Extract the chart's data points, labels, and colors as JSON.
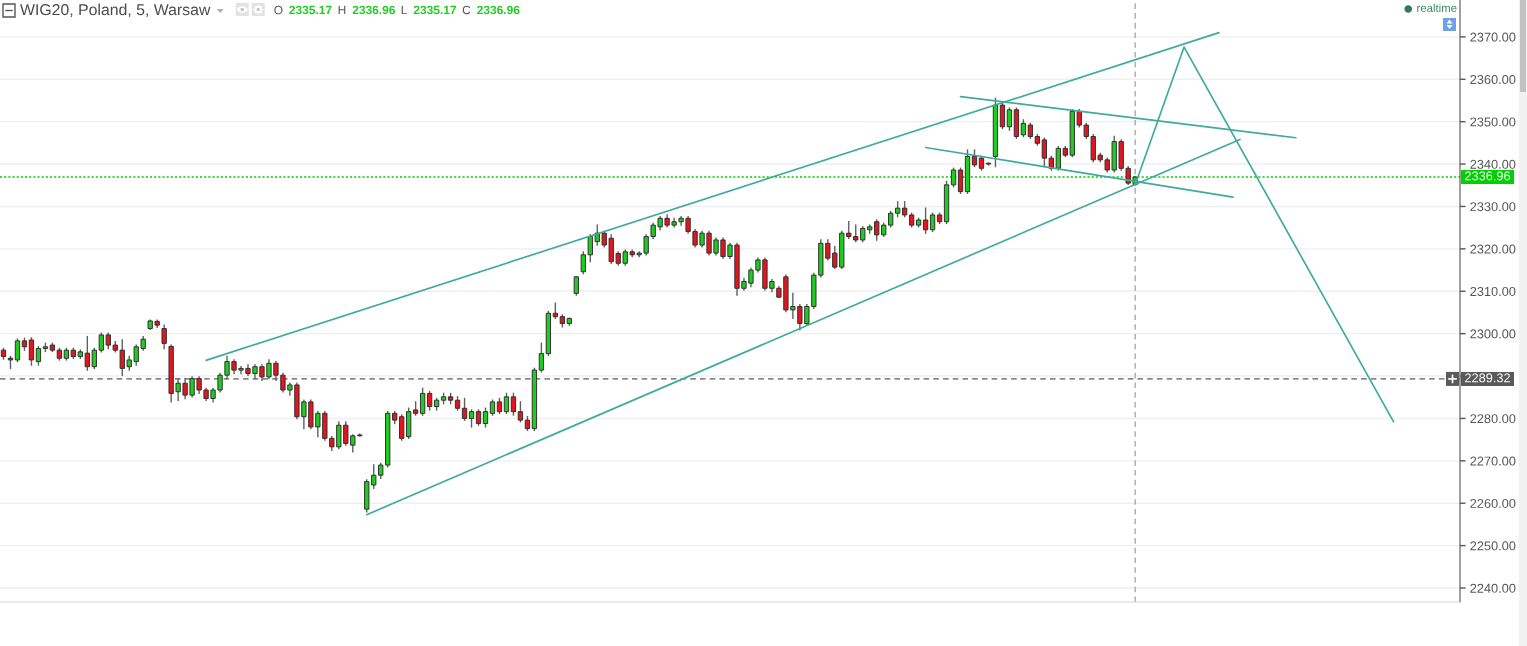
{
  "chart_data": {
    "type": "candlestick",
    "title": "WIG20, Poland, 5, Warsaw",
    "annotations": [
      "O",
      "2335.17",
      "H",
      "2336.96",
      "L",
      "2335.17",
      "C",
      "2336.96",
      "realtime"
    ],
    "categories": [
      null,
      null,
      null,
      null,
      null,
      null,
      null,
      null,
      null,
      null,
      null,
      null,
      null,
      null,
      null,
      null,
      null,
      null,
      null,
      null,
      null,
      null,
      null,
      null,
      null,
      null,
      null,
      null,
      null,
      null,
      null,
      null,
      null,
      null,
      null,
      null,
      null,
      null,
      null,
      null,
      null,
      null,
      null,
      null,
      null,
      null,
      null,
      null,
      null,
      null,
      null,
      null,
      null,
      null,
      null,
      null,
      null,
      null,
      null,
      null,
      null,
      null,
      null,
      null,
      null,
      null,
      null,
      null,
      null,
      null,
      null,
      null,
      null,
      null,
      null,
      null,
      null,
      null,
      null,
      null,
      null,
      null,
      null,
      null,
      null,
      null,
      null,
      null,
      null,
      null,
      null,
      null,
      null,
      null,
      null,
      null,
      null,
      null,
      null,
      null,
      null,
      null,
      null,
      null,
      null,
      null,
      null,
      null,
      null,
      null,
      null,
      null,
      null,
      null,
      null,
      null,
      null,
      null,
      null,
      null,
      null,
      null,
      null,
      null,
      null,
      null,
      null,
      null,
      null,
      null,
      null,
      null,
      null,
      null,
      null,
      null,
      null,
      null,
      null,
      null,
      null,
      null,
      null,
      null,
      null,
      null,
      null,
      null,
      null,
      null,
      null,
      null,
      null,
      null,
      null,
      null,
      null,
      null,
      null,
      null,
      null,
      null,
      null,
      null,
      null,
      null,
      null,
      null,
      null,
      null,
      null,
      null,
      null,
      null,
      null,
      null,
      null,
      null,
      null,
      null,
      null,
      null,
      null,
      null,
      null,
      null,
      null,
      null,
      null,
      null,
      null,
      null,
      null,
      null,
      null,
      null,
      null,
      null,
      null,
      null,
      null,
      null,
      null,
      null,
      null,
      null,
      null,
      null,
      null
    ],
    "ohlc": [
      [
        2296.1,
        2296.5,
        2294.0,
        2294.6
      ],
      [
        2294.2,
        2294.6,
        2291.8,
        2293.8
      ],
      [
        2293.8,
        2298.7,
        2293.4,
        2298.3
      ],
      [
        2298.3,
        2298.9,
        2296.1,
        2296.9
      ],
      [
        2298.5,
        2299.0,
        2292.6,
        2293.8
      ],
      [
        2293.4,
        2296.9,
        2292.6,
        2296.5
      ],
      [
        2296.5,
        2297.7,
        2295.8,
        2296.9
      ],
      [
        2297.3,
        2297.7,
        2295.8,
        2296.1
      ],
      [
        2296.1,
        2296.5,
        2293.8,
        2294.2
      ],
      [
        2294.2,
        2296.5,
        2293.8,
        2296.1
      ],
      [
        2296.1,
        2296.5,
        2294.2,
        2294.6
      ],
      [
        2294.6,
        2296.1,
        2294.2,
        2295.7
      ],
      [
        2295.4,
        2299.3,
        2291.4,
        2292.2
      ],
      [
        2292.2,
        2296.5,
        2291.8,
        2296.1
      ],
      [
        2296.1,
        2300.1,
        2295.7,
        2299.7
      ],
      [
        2299.7,
        2300.1,
        2296.5,
        2297.3
      ],
      [
        2297.3,
        2298.1,
        2295.7,
        2296.1
      ],
      [
        2296.1,
        2298.5,
        2290.2,
        2291.8
      ],
      [
        2292.2,
        2294.6,
        2291.4,
        2293.8
      ],
      [
        2293.4,
        2297.3,
        2292.6,
        2296.9
      ],
      [
        2296.5,
        2299.3,
        2296.1,
        2298.7
      ],
      [
        2301.2,
        2303.2,
        2301.0,
        2303.0
      ],
      [
        2302.9,
        2303.2,
        2301.5,
        2302.0
      ],
      [
        2301.2,
        2302.0,
        2296.5,
        2297.7
      ],
      [
        2297.0,
        2297.3,
        2283.9,
        2285.9
      ],
      [
        2286.3,
        2289.4,
        2284.3,
        2288.3
      ],
      [
        2288.3,
        2289.4,
        2284.7,
        2285.5
      ],
      [
        2285.5,
        2289.8,
        2285.1,
        2289.4
      ],
      [
        2289.4,
        2289.8,
        2285.9,
        2286.7
      ],
      [
        2286.7,
        2287.1,
        2284.3,
        2284.7
      ],
      [
        2284.7,
        2287.1,
        2283.9,
        2286.7
      ],
      [
        2286.7,
        2290.6,
        2286.3,
        2290.2
      ],
      [
        2290.2,
        2294.6,
        2289.4,
        2293.4
      ],
      [
        2293.4,
        2293.8,
        2290.6,
        2291.4
      ],
      [
        2291.4,
        2292.2,
        2290.6,
        2291.8
      ],
      [
        2291.8,
        2292.6,
        2290.2,
        2290.6
      ],
      [
        2290.6,
        2292.6,
        2289.4,
        2292.2
      ],
      [
        2292.2,
        2292.6,
        2289.0,
        2289.8
      ],
      [
        2289.8,
        2293.8,
        2289.4,
        2293.0
      ],
      [
        2293.0,
        2293.4,
        2289.0,
        2290.2
      ],
      [
        2290.2,
        2290.6,
        2286.3,
        2286.7
      ],
      [
        2286.7,
        2288.3,
        2285.5,
        2287.9
      ],
      [
        2287.9,
        2288.3,
        2280.0,
        2280.4
      ],
      [
        2280.4,
        2284.3,
        2277.6,
        2283.9
      ],
      [
        2283.9,
        2284.3,
        2277.6,
        2278.0
      ],
      [
        2278.0,
        2281.6,
        2275.7,
        2281.2
      ],
      [
        2281.2,
        2281.6,
        2274.9,
        2275.3
      ],
      [
        2275.3,
        2275.7,
        2272.5,
        2273.3
      ],
      [
        2273.3,
        2279.2,
        2272.9,
        2278.4
      ],
      [
        2278.4,
        2279.2,
        2273.7,
        2274.1
      ],
      [
        2273.7,
        2276.1,
        2272.1,
        2275.9
      ],
      [
        2275.9,
        2276.3,
        2275.9,
        2276.1
      ],
      [
        2258.6,
        2265.5,
        2258.0,
        2265.1
      ],
      [
        2264.3,
        2269.0,
        2263.5,
        2266.6
      ],
      [
        2266.6,
        2269.4,
        2265.9,
        2269.0
      ],
      [
        2269.0,
        2281.6,
        2268.6,
        2281.2
      ],
      [
        2281.2,
        2281.6,
        2278.8,
        2279.6
      ],
      [
        2280.4,
        2280.8,
        2274.9,
        2275.3
      ],
      [
        2275.7,
        2282.4,
        2275.3,
        2281.6
      ],
      [
        2282.0,
        2283.9,
        2280.8,
        2281.2
      ],
      [
        2281.2,
        2287.1,
        2280.8,
        2285.9
      ],
      [
        2285.9,
        2286.3,
        2282.0,
        2282.8
      ],
      [
        2282.8,
        2284.7,
        2282.0,
        2284.3
      ],
      [
        2284.3,
        2285.9,
        2283.5,
        2285.1
      ],
      [
        2285.1,
        2285.9,
        2283.5,
        2284.3
      ],
      [
        2284.3,
        2285.1,
        2282.0,
        2282.4
      ],
      [
        2282.4,
        2284.7,
        2279.6,
        2280.0
      ],
      [
        2280.0,
        2282.0,
        2278.0,
        2281.6
      ],
      [
        2281.6,
        2282.0,
        2278.4,
        2278.8
      ],
      [
        2278.8,
        2282.4,
        2278.0,
        2281.6
      ],
      [
        2281.2,
        2284.3,
        2280.8,
        2283.9
      ],
      [
        2283.9,
        2284.7,
        2281.2,
        2281.6
      ],
      [
        2281.6,
        2285.9,
        2281.2,
        2285.1
      ],
      [
        2285.1,
        2285.9,
        2280.8,
        2281.6
      ],
      [
        2281.6,
        2283.9,
        2279.2,
        2279.6
      ],
      [
        2279.6,
        2280.4,
        2277.2,
        2277.6
      ],
      [
        2277.6,
        2291.8,
        2277.2,
        2291.4
      ],
      [
        2291.4,
        2297.7,
        2291.0,
        2295.3
      ],
      [
        2295.3,
        2305.2,
        2294.9,
        2304.8
      ],
      [
        2304.8,
        2307.2,
        2303.6,
        2304.0
      ],
      [
        2304.0,
        2304.4,
        2301.6,
        2302.4
      ],
      [
        2302.4,
        2303.6,
        2302.0,
        2303.6
      ],
      [
        2309.5,
        2313.4,
        2309.1,
        2313.4
      ],
      [
        2314.6,
        2319.3,
        2314.2,
        2318.6
      ],
      [
        2318.6,
        2323.3,
        2317.0,
        2322.9
      ],
      [
        2321.7,
        2325.6,
        2320.9,
        2323.7
      ],
      [
        2323.7,
        2324.1,
        2320.5,
        2320.9
      ],
      [
        2322.5,
        2323.3,
        2316.6,
        2317.0
      ],
      [
        2318.9,
        2319.3,
        2316.2,
        2316.6
      ],
      [
        2316.6,
        2319.7,
        2316.2,
        2319.3
      ],
      [
        2319.3,
        2319.7,
        2318.2,
        2318.6
      ],
      [
        2318.6,
        2319.3,
        2318.2,
        2319.0
      ],
      [
        2319.0,
        2323.3,
        2318.6,
        2322.9
      ],
      [
        2322.9,
        2326.0,
        2322.5,
        2325.6
      ],
      [
        2325.2,
        2327.6,
        2324.5,
        2327.2
      ],
      [
        2327.2,
        2328.0,
        2325.2,
        2325.6
      ],
      [
        2325.6,
        2327.2,
        2325.2,
        2326.4
      ],
      [
        2326.4,
        2327.6,
        2325.6,
        2327.2
      ],
      [
        2327.2,
        2327.6,
        2323.7,
        2324.1
      ],
      [
        2324.1,
        2324.5,
        2320.5,
        2320.9
      ],
      [
        2320.9,
        2324.1,
        2320.5,
        2323.7
      ],
      [
        2323.7,
        2324.1,
        2318.6,
        2319.0
      ],
      [
        2319.0,
        2322.5,
        2318.6,
        2322.1
      ],
      [
        2322.1,
        2322.5,
        2317.8,
        2318.2
      ],
      [
        2318.2,
        2321.3,
        2317.8,
        2320.9
      ],
      [
        2320.9,
        2321.3,
        2309.1,
        2310.7
      ],
      [
        2310.7,
        2313.0,
        2310.3,
        2312.3
      ],
      [
        2311.9,
        2315.4,
        2311.1,
        2315.0
      ],
      [
        2315.0,
        2317.8,
        2314.6,
        2317.4
      ],
      [
        2317.4,
        2317.8,
        2310.3,
        2310.7
      ],
      [
        2310.7,
        2312.7,
        2309.9,
        2312.3
      ],
      [
        2310.7,
        2311.1,
        2308.6,
        2308.6
      ],
      [
        2313.4,
        2313.8,
        2305.2,
        2305.6
      ],
      [
        2305.6,
        2309.5,
        2303.6,
        2306.4
      ],
      [
        2306.4,
        2306.8,
        2300.9,
        2302.4
      ],
      [
        2302.4,
        2306.8,
        2302.0,
        2306.4
      ],
      [
        2306.4,
        2314.2,
        2306.0,
        2313.8
      ],
      [
        2313.8,
        2322.1,
        2313.4,
        2321.3
      ],
      [
        2321.3,
        2322.1,
        2317.4,
        2317.8
      ],
      [
        2319.0,
        2320.5,
        2315.4,
        2315.7
      ],
      [
        2315.7,
        2324.1,
        2315.4,
        2323.7
      ],
      [
        2323.7,
        2326.4,
        2322.5,
        2322.9
      ],
      [
        2322.9,
        2325.6,
        2321.7,
        2322.1
      ],
      [
        2322.1,
        2325.2,
        2321.7,
        2324.8
      ],
      [
        2324.5,
        2325.6,
        2323.7,
        2325.2
      ],
      [
        2326.4,
        2326.8,
        2322.1,
        2323.3
      ],
      [
        2323.3,
        2326.0,
        2323.0,
        2325.6
      ],
      [
        2325.6,
        2328.8,
        2325.2,
        2328.4
      ],
      [
        2328.4,
        2331.1,
        2327.6,
        2329.6
      ],
      [
        2329.6,
        2331.1,
        2327.6,
        2328.0
      ],
      [
        2328.0,
        2328.4,
        2325.2,
        2325.6
      ],
      [
        2325.6,
        2327.2,
        2325.2,
        2326.8
      ],
      [
        2326.8,
        2329.6,
        2323.7,
        2324.5
      ],
      [
        2324.5,
        2328.4,
        2324.1,
        2328.0
      ],
      [
        2328.0,
        2328.4,
        2326.0,
        2326.4
      ],
      [
        2326.4,
        2335.9,
        2326.0,
        2335.1
      ],
      [
        2335.1,
        2339.0,
        2334.7,
        2338.6
      ],
      [
        2338.6,
        2339.0,
        2333.1,
        2333.5
      ],
      [
        2333.5,
        2343.3,
        2333.1,
        2341.8
      ],
      [
        2341.8,
        2343.3,
        2339.4,
        2339.8
      ],
      [
        2341.4,
        2341.8,
        2338.6,
        2339.0
      ],
      [
        2340.0,
        2340.2,
        2339.8,
        2340.2
      ],
      [
        2341.8,
        2355.5,
        2339.4,
        2353.9
      ],
      [
        2353.9,
        2354.7,
        2348.4,
        2348.8
      ],
      [
        2348.8,
        2353.2,
        2348.0,
        2352.8
      ],
      [
        2352.8,
        2353.2,
        2346.1,
        2346.5
      ],
      [
        2346.9,
        2350.4,
        2346.5,
        2349.6
      ],
      [
        2349.2,
        2349.6,
        2346.1,
        2346.5
      ],
      [
        2346.5,
        2346.9,
        2344.5,
        2344.9
      ],
      [
        2345.7,
        2346.1,
        2339.4,
        2341.4
      ],
      [
        2341.4,
        2341.8,
        2338.6,
        2339.0
      ],
      [
        2339.0,
        2344.1,
        2338.6,
        2343.7
      ],
      [
        2343.7,
        2344.1,
        2341.8,
        2342.1
      ],
      [
        2342.1,
        2352.8,
        2341.8,
        2352.4
      ],
      [
        2352.4,
        2352.8,
        2348.8,
        2349.2
      ],
      [
        2349.2,
        2349.6,
        2346.1,
        2346.5
      ],
      [
        2346.5,
        2346.9,
        2340.6,
        2341.0
      ],
      [
        2342.1,
        2342.5,
        2340.6,
        2341.0
      ],
      [
        2341.0,
        2341.4,
        2338.2,
        2338.6
      ],
      [
        2338.6,
        2346.5,
        2338.2,
        2345.3
      ],
      [
        2345.3,
        2345.7,
        2338.6,
        2339.0
      ],
      [
        2339.0,
        2339.4,
        2335.2,
        2335.5
      ],
      [
        2335.17,
        2336.96,
        2335.17,
        2336.96
      ],
      null,
      null,
      null,
      null,
      null,
      null,
      null,
      null,
      null,
      null,
      null,
      null,
      null,
      null,
      null,
      null,
      null,
      null,
      null,
      null,
      null,
      null,
      null,
      null,
      null,
      null,
      null,
      null,
      null,
      null,
      null,
      null,
      null,
      null,
      null,
      null,
      null,
      null,
      null,
      null,
      null,
      null,
      null,
      null,
      null,
      null
    ],
    "colors": [
      "#e3151f",
      "#e3151f",
      "#1fcc1f",
      "#e3151f",
      "#e3151f",
      "#1fcc1f",
      "#1fcc1f",
      "#e3151f",
      "#e3151f",
      "#1fcc1f",
      "#e3151f",
      "#1fcc1f",
      "#e3151f",
      "#1fcc1f",
      "#1fcc1f",
      "#e3151f",
      "#e3151f",
      "#e3151f",
      "#1fcc1f",
      "#1fcc1f",
      "#1fcc1f",
      "#1fcc1f",
      "#e3151f",
      "#e3151f",
      "#e3151f",
      "#1fcc1f",
      "#e3151f",
      "#1fcc1f",
      "#e3151f",
      "#e3151f",
      "#1fcc1f",
      "#1fcc1f",
      "#1fcc1f",
      "#e3151f",
      "#1fcc1f",
      "#e3151f",
      "#1fcc1f",
      "#e3151f",
      "#1fcc1f",
      "#e3151f",
      "#e3151f",
      "#1fcc1f",
      "#e3151f",
      "#1fcc1f",
      "#e3151f",
      "#1fcc1f",
      "#e3151f",
      "#e3151f",
      "#1fcc1f",
      "#e3151f",
      "#1fcc1f",
      "#1fcc1f",
      "#1fcc1f",
      "#1fcc1f",
      "#1fcc1f",
      "#1fcc1f",
      "#e3151f",
      "#e3151f",
      "#1fcc1f",
      "#e3151f",
      "#1fcc1f",
      "#e3151f",
      "#1fcc1f",
      "#1fcc1f",
      "#e3151f",
      "#e3151f",
      "#e3151f",
      "#1fcc1f",
      "#e3151f",
      "#1fcc1f",
      "#1fcc1f",
      "#e3151f",
      "#1fcc1f",
      "#e3151f",
      "#e3151f",
      "#e3151f",
      "#1fcc1f",
      "#1fcc1f",
      "#1fcc1f",
      "#e3151f",
      "#e3151f",
      "#1fcc1f",
      "#1fcc1f",
      "#1fcc1f",
      "#1fcc1f",
      "#1fcc1f",
      "#e3151f",
      "#e3151f",
      "#e3151f",
      "#1fcc1f",
      "#e3151f",
      "#1fcc1f",
      "#1fcc1f",
      "#1fcc1f",
      "#1fcc1f",
      "#e3151f",
      "#1fcc1f",
      "#1fcc1f",
      "#e3151f",
      "#e3151f",
      "#1fcc1f",
      "#e3151f",
      "#1fcc1f",
      "#e3151f",
      "#1fcc1f",
      "#e3151f",
      "#1fcc1f",
      "#1fcc1f",
      "#1fcc1f",
      "#e3151f",
      "#1fcc1f",
      "#e3151f",
      "#e3151f",
      "#1fcc1f",
      "#e3151f",
      "#1fcc1f",
      "#1fcc1f",
      "#1fcc1f",
      "#e3151f",
      "#e3151f",
      "#1fcc1f",
      "#e3151f",
      "#e3151f",
      "#1fcc1f",
      "#1fcc1f",
      "#e3151f",
      "#1fcc1f",
      "#1fcc1f",
      "#1fcc1f",
      "#e3151f",
      "#e3151f",
      "#1fcc1f",
      "#e3151f",
      "#1fcc1f",
      "#e3151f",
      "#1fcc1f",
      "#1fcc1f",
      "#e3151f",
      "#1fcc1f",
      "#e3151f",
      "#e3151f",
      "#1fcc1f",
      "#1fcc1f",
      "#e3151f",
      "#1fcc1f",
      "#e3151f",
      "#1fcc1f",
      "#e3151f",
      "#e3151f",
      "#e3151f",
      "#e3151f",
      "#1fcc1f",
      "#e3151f",
      "#1fcc1f",
      "#e3151f",
      "#e3151f",
      "#e3151f",
      "#e3151f",
      "#e3151f",
      "#1fcc1f",
      "#e3151f",
      "#e3151f",
      "#1fcc1f",
      null,
      null,
      null,
      null,
      null,
      null,
      null,
      null,
      null,
      null,
      null,
      null,
      null,
      null,
      null,
      null,
      null,
      null,
      null,
      null,
      null,
      null,
      null,
      null,
      null,
      null,
      null,
      null,
      null,
      null,
      null,
      null,
      null,
      null,
      null,
      null,
      null,
      null,
      null,
      null,
      null,
      null,
      null,
      null,
      null,
      null
    ],
    "series": [
      {
        "type": "line",
        "color": "#3fab9b",
        "values": [
          null,
          null,
          null,
          null,
          null,
          null,
          null,
          null,
          null,
          null,
          null,
          null,
          null,
          null,
          null,
          null,
          null,
          null,
          null,
          null,
          null,
          null,
          null,
          null,
          null,
          null,
          null,
          null,
          null,
          2293.7,
          null,
          null,
          null,
          null,
          null,
          null,
          null,
          null,
          null,
          null,
          null,
          null,
          null,
          null,
          null,
          null,
          null,
          null,
          null,
          null,
          null,
          null,
          null,
          null,
          null,
          null,
          null,
          null,
          null,
          null,
          null,
          null,
          null,
          null,
          null,
          null,
          null,
          null,
          null,
          null,
          null,
          null,
          null,
          null,
          null,
          null,
          null,
          null,
          null,
          null,
          null,
          null,
          null,
          null,
          null,
          null,
          null,
          null,
          null,
          null,
          null,
          null,
          null,
          null,
          null,
          null,
          null,
          null,
          null,
          null,
          null,
          null,
          null,
          null,
          null,
          null,
          null,
          null,
          null,
          null,
          null,
          null,
          null,
          null,
          null,
          null,
          null,
          null,
          null,
          null,
          null,
          null,
          null,
          null,
          null,
          null,
          null,
          null,
          null,
          null,
          null,
          null,
          null,
          null,
          null,
          null,
          null,
          null,
          null,
          null,
          null,
          null,
          null,
          null,
          null,
          null,
          null,
          null,
          null,
          null,
          null,
          null,
          null,
          null,
          null,
          null,
          null,
          null,
          null,
          null,
          null,
          null,
          null,
          null,
          null,
          null,
          null,
          null,
          null,
          null,
          null,
          null,
          null,
          null,
          2371.0,
          null,
          null,
          null,
          null,
          null,
          null,
          null,
          null,
          null,
          null,
          null,
          null,
          null,
          null,
          null,
          null,
          null,
          null,
          null,
          null,
          null,
          null,
          null,
          null,
          null,
          null,
          null,
          null,
          null,
          null,
          null,
          null,
          null,
          null
        ]
      },
      {
        "type": "line",
        "color": "#3fab9b",
        "values": [
          null,
          null,
          null,
          null,
          null,
          null,
          null,
          null,
          null,
          null,
          null,
          null,
          null,
          null,
          null,
          null,
          null,
          null,
          null,
          null,
          null,
          null,
          null,
          null,
          null,
          null,
          null,
          null,
          null,
          null,
          null,
          null,
          null,
          null,
          null,
          null,
          null,
          null,
          null,
          null,
          null,
          null,
          null,
          null,
          null,
          null,
          null,
          null,
          null,
          null,
          null,
          null,
          2257.3,
          null,
          null,
          null,
          null,
          null,
          null,
          null,
          null,
          null,
          null,
          null,
          null,
          null,
          null,
          null,
          null,
          null,
          null,
          null,
          null,
          null,
          null,
          null,
          null,
          null,
          null,
          null,
          null,
          null,
          null,
          null,
          null,
          null,
          null,
          null,
          null,
          null,
          null,
          null,
          null,
          null,
          null,
          null,
          null,
          null,
          null,
          null,
          null,
          null,
          null,
          null,
          null,
          null,
          null,
          null,
          null,
          null,
          null,
          null,
          null,
          null,
          null,
          null,
          null,
          null,
          null,
          null,
          null,
          null,
          null,
          null,
          null,
          null,
          null,
          null,
          null,
          null,
          null,
          null,
          null,
          null,
          null,
          null,
          null,
          null,
          null,
          null,
          null,
          null,
          null,
          null,
          null,
          null,
          null,
          null,
          null,
          null,
          null,
          null,
          null,
          null,
          null,
          null,
          null,
          null,
          null,
          null,
          null,
          null,
          null,
          null,
          null,
          null,
          null,
          null,
          null,
          null,
          null,
          null,
          null,
          null,
          null,
          null,
          null,
          2345.8,
          null,
          null,
          null,
          null,
          null,
          null,
          null,
          null,
          null,
          null,
          null,
          null,
          null,
          null,
          null,
          null,
          null,
          null,
          null,
          null,
          null,
          null,
          null,
          null,
          null,
          null,
          null,
          null,
          null,
          null,
          null
        ]
      },
      {
        "type": "line",
        "color": "#3fab9b",
        "values": [
          null,
          null,
          null,
          null,
          null,
          null,
          null,
          null,
          null,
          null,
          null,
          null,
          null,
          null,
          null,
          null,
          null,
          null,
          null,
          null,
          null,
          null,
          null,
          null,
          null,
          null,
          null,
          null,
          null,
          null,
          null,
          null,
          null,
          null,
          null,
          null,
          null,
          null,
          null,
          null,
          null,
          null,
          null,
          null,
          null,
          null,
          null,
          null,
          null,
          null,
          null,
          null,
          null,
          null,
          null,
          null,
          null,
          null,
          null,
          null,
          null,
          null,
          null,
          null,
          null,
          null,
          null,
          null,
          null,
          null,
          null,
          null,
          null,
          null,
          null,
          null,
          null,
          null,
          null,
          null,
          null,
          null,
          null,
          null,
          null,
          null,
          null,
          null,
          null,
          null,
          null,
          null,
          null,
          null,
          null,
          null,
          null,
          null,
          null,
          null,
          null,
          null,
          null,
          null,
          null,
          null,
          null,
          null,
          null,
          null,
          null,
          null,
          null,
          null,
          null,
          null,
          null,
          null,
          null,
          null,
          null,
          null,
          null,
          null,
          null,
          null,
          null,
          null,
          null,
          null,
          null,
          null,
          null,
          null,
          null,
          null,
          null,
          2355.9,
          null,
          null,
          null,
          null,
          null,
          null,
          null,
          null,
          null,
          null,
          null,
          null,
          null,
          null,
          null,
          null,
          null,
          null,
          null,
          null,
          null,
          null,
          null,
          null,
          null,
          null,
          null,
          null,
          null,
          null,
          null,
          null,
          null,
          null,
          null,
          null,
          null,
          null,
          null,
          null,
          null,
          null,
          null,
          null,
          null,
          null,
          null,
          2346.2,
          null,
          null,
          null,
          null,
          null,
          null,
          null,
          null,
          null,
          null,
          null,
          null,
          null,
          null,
          null,
          null,
          null,
          null,
          null,
          null,
          null,
          null,
          null
        ]
      },
      {
        "type": "line",
        "color": "#3fab9b",
        "values": [
          null,
          null,
          null,
          null,
          null,
          null,
          null,
          null,
          null,
          null,
          null,
          null,
          null,
          null,
          null,
          null,
          null,
          null,
          null,
          null,
          null,
          null,
          null,
          null,
          null,
          null,
          null,
          null,
          null,
          null,
          null,
          null,
          null,
          null,
          null,
          null,
          null,
          null,
          null,
          null,
          null,
          null,
          null,
          null,
          null,
          null,
          null,
          null,
          null,
          null,
          null,
          null,
          null,
          null,
          null,
          null,
          null,
          null,
          null,
          null,
          null,
          null,
          null,
          null,
          null,
          null,
          null,
          null,
          null,
          null,
          null,
          null,
          null,
          null,
          null,
          null,
          null,
          null,
          null,
          null,
          null,
          null,
          null,
          null,
          null,
          null,
          null,
          null,
          null,
          null,
          null,
          null,
          null,
          null,
          null,
          null,
          null,
          null,
          null,
          null,
          null,
          null,
          null,
          null,
          null,
          null,
          null,
          null,
          null,
          null,
          null,
          null,
          null,
          null,
          null,
          null,
          null,
          null,
          null,
          null,
          null,
          null,
          null,
          null,
          null,
          null,
          null,
          null,
          null,
          null,
          null,
          null,
          2343.9,
          null,
          null,
          null,
          null,
          null,
          null,
          null,
          null,
          null,
          null,
          null,
          null,
          null,
          null,
          null,
          null,
          null,
          null,
          null,
          null,
          null,
          null,
          null,
          null,
          null,
          null,
          null,
          null,
          null,
          null,
          null,
          null,
          null,
          null,
          null,
          null,
          null,
          null,
          null,
          null,
          null,
          null,
          null,
          2332.2,
          null,
          null,
          null,
          null,
          null,
          null,
          null,
          null,
          null,
          null,
          null,
          null,
          null,
          null,
          null,
          null,
          null,
          null,
          null,
          null,
          null,
          null,
          null,
          null,
          null,
          null,
          null,
          null,
          null,
          null,
          null,
          null
        ]
      },
      {
        "type": "line",
        "color": "#3fab9b",
        "values": [
          null,
          null,
          null,
          null,
          null,
          null,
          null,
          null,
          null,
          null,
          null,
          null,
          null,
          null,
          null,
          null,
          null,
          null,
          null,
          null,
          null,
          null,
          null,
          null,
          null,
          null,
          null,
          null,
          null,
          null,
          null,
          null,
          null,
          null,
          null,
          null,
          null,
          null,
          null,
          null,
          null,
          null,
          null,
          null,
          null,
          null,
          null,
          null,
          null,
          null,
          null,
          null,
          null,
          null,
          null,
          null,
          null,
          null,
          null,
          null,
          null,
          null,
          null,
          null,
          null,
          null,
          null,
          null,
          null,
          null,
          null,
          null,
          null,
          null,
          null,
          null,
          null,
          null,
          null,
          null,
          null,
          null,
          null,
          null,
          null,
          null,
          null,
          null,
          null,
          null,
          null,
          null,
          null,
          null,
          null,
          null,
          null,
          null,
          null,
          null,
          null,
          null,
          null,
          null,
          null,
          null,
          null,
          null,
          null,
          null,
          null,
          null,
          null,
          null,
          null,
          null,
          null,
          null,
          null,
          null,
          null,
          null,
          null,
          null,
          null,
          null,
          null,
          null,
          null,
          null,
          null,
          null,
          null,
          null,
          null,
          null,
          null,
          null,
          null,
          null,
          null,
          null,
          null,
          null,
          null,
          null,
          null,
          null,
          null,
          null,
          null,
          null,
          null,
          null,
          null,
          null,
          null,
          null,
          null,
          null,
          null,
          null,
          2335.1,
          null,
          null,
          null,
          null,
          null,
          null,
          2367.6,
          null,
          null,
          null,
          null,
          null,
          null,
          null,
          null,
          null,
          null,
          null,
          null,
          null,
          null,
          null,
          null,
          null,
          null,
          null,
          null,
          null,
          null,
          null,
          null,
          null,
          null,
          null,
          null,
          null,
          2279.2,
          null,
          null,
          null,
          null,
          null,
          null,
          null,
          null,
          null
        ]
      }
    ],
    "ylim": [
      2236.7,
      2378.7
    ],
    "yticks": [
      {
        "value": 2240,
        "label": "2240.00"
      },
      {
        "value": 2250,
        "label": "2250.00"
      },
      {
        "value": 2260,
        "label": "2260.00"
      },
      {
        "value": 2270,
        "label": "2270.00"
      },
      {
        "value": 2280,
        "label": "2280.00"
      },
      {
        "value": 2290,
        "label": null
      },
      {
        "value": 2300,
        "label": "2300.00"
      },
      {
        "value": 2310,
        "label": "2310.00"
      },
      {
        "value": 2320,
        "label": "2320.00"
      },
      {
        "value": 2330,
        "label": "2330.00"
      },
      {
        "value": 2340,
        "label": "2340.00"
      },
      {
        "value": 2350,
        "label": "2350.00"
      },
      {
        "value": 2360,
        "label": "2360.00"
      },
      {
        "value": 2370,
        "label": "2370.00"
      }
    ],
    "ref_lines": [
      {
        "axis": "y",
        "value": 2336.96,
        "label": "2336.96",
        "color": "#00d000",
        "line_style": "dotted"
      },
      {
        "axis": "y",
        "value": 2289.32,
        "label": "2289.32",
        "color": "#5a5a5a",
        "line_style": "dashed"
      }
    ],
    "grid": "y",
    "tick_labels": "y"
  }
}
